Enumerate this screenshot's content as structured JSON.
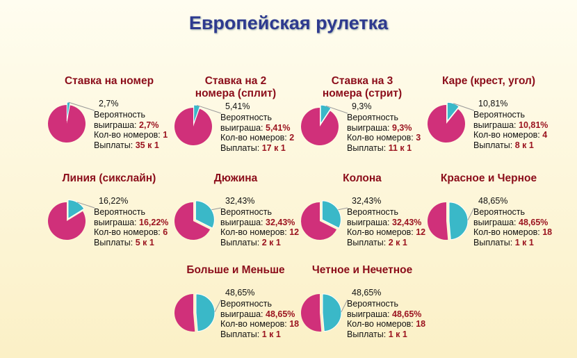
{
  "title": "Европейская рулетка",
  "labels": {
    "prob1": "Вероятность",
    "prob2": "выиграша: ",
    "count": "Кол-во номеров: ",
    "payout": "Выплаты: "
  },
  "colors": {
    "main": "#d0307a",
    "slice": "#3ab8c8",
    "title": "#8b0d1a",
    "value": "#9b1420"
  },
  "chart_data": {
    "type": "pie",
    "title": "Европейская рулетка",
    "items": [
      {
        "name": "Ставка на номер",
        "title_lines": [
          "Ставка на номер"
        ],
        "percent": 2.7,
        "percent_label": "2,7%",
        "numbers": "1",
        "payout": "35 к 1"
      },
      {
        "name": "Ставка на 2 номера (сплит)",
        "title_lines": [
          "Ставка на 2",
          "номера (сплит)"
        ],
        "percent": 5.41,
        "percent_label": "5,41%",
        "numbers": "2",
        "payout": "17 к 1"
      },
      {
        "name": "Ставка на 3 номера (стрит)",
        "title_lines": [
          "Ставка на 3",
          "номера (стрит)"
        ],
        "percent": 9.3,
        "percent_label": "9,3%",
        "numbers": "3",
        "payout": "11 к 1"
      },
      {
        "name": "Каре (крест, угол)",
        "title_lines": [
          "Каре (крест, угол)"
        ],
        "percent": 10.81,
        "percent_label": "10,81%",
        "numbers": "4",
        "payout": "8 к 1"
      },
      {
        "name": "Линия (сикслайн)",
        "title_lines": [
          "Линия (сикслайн)"
        ],
        "percent": 16.22,
        "percent_label": "16,22%",
        "numbers": "6",
        "payout": "5 к 1"
      },
      {
        "name": "Дюжина",
        "title_lines": [
          "Дюжина"
        ],
        "percent": 32.43,
        "percent_label": "32,43%",
        "numbers": "12",
        "payout": "2 к 1"
      },
      {
        "name": "Колона",
        "title_lines": [
          "Колона"
        ],
        "percent": 32.43,
        "percent_label": "32,43%",
        "numbers": "12",
        "payout": "2 к 1"
      },
      {
        "name": "Красное и Черное",
        "title_lines": [
          "Красное и Черное"
        ],
        "percent": 48.65,
        "percent_label": "48,65%",
        "numbers": "18",
        "payout": "1 к 1"
      },
      {
        "name": "Больше и Меньше",
        "title_lines": [
          "Больше и Меньше"
        ],
        "percent": 48.65,
        "percent_label": "48,65%",
        "numbers": "18",
        "payout": "1 к 1"
      },
      {
        "name": "Четное и Нечетное",
        "title_lines": [
          "Четное и Нечетное"
        ],
        "percent": 48.65,
        "percent_label": "48,65%",
        "numbers": "18",
        "payout": "1 к 1"
      }
    ]
  }
}
